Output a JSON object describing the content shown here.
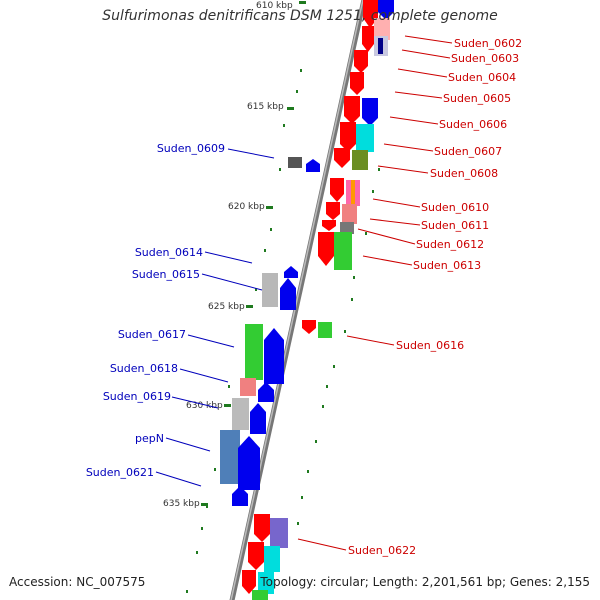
{
  "title": "Sulfurimonas denitrificans DSM 1251, complete genome",
  "footer": {
    "accession": "Accession: NC_007575",
    "summary": "Topology: circular; Length: 2,201,561 bp; Genes: 2,155"
  },
  "colors": {
    "backbone": "#888888",
    "tick": "#1f7a1f",
    "label_right": "#cc0000",
    "label_left": "#0000bb"
  },
  "ticks": [
    {
      "label": "610 kbp"
    },
    {
      "label": "615 kbp"
    },
    {
      "label": "620 kbp"
    },
    {
      "label": "625 kbp"
    },
    {
      "label": "630 kbp"
    },
    {
      "label": "635 kbp"
    }
  ],
  "labels_right": [
    {
      "name": "Suden_0602"
    },
    {
      "name": "Suden_0603"
    },
    {
      "name": "Suden_0604"
    },
    {
      "name": "Suden_0605"
    },
    {
      "name": "Suden_0606"
    },
    {
      "name": "Suden_0607"
    },
    {
      "name": "Suden_0608"
    },
    {
      "name": "Suden_0610"
    },
    {
      "name": "Suden_0611"
    },
    {
      "name": "Suden_0612"
    },
    {
      "name": "Suden_0613"
    },
    {
      "name": "Suden_0616"
    },
    {
      "name": "Suden_0622"
    }
  ],
  "labels_left": [
    {
      "name": "Suden_0609"
    },
    {
      "name": "Suden_0614"
    },
    {
      "name": "Suden_0615"
    },
    {
      "name": "Suden_0617"
    },
    {
      "name": "Suden_0618"
    },
    {
      "name": "Suden_0619"
    },
    {
      "name": "pepN"
    },
    {
      "name": "Suden_0621"
    }
  ]
}
